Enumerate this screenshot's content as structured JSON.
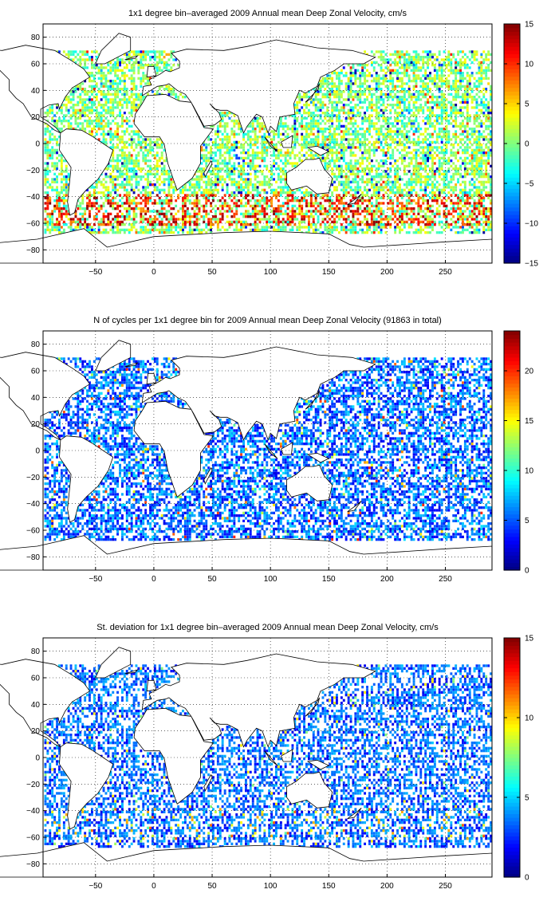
{
  "figure": {
    "panels": [
      {
        "title": "1x1 degree bin–averaged 2009 Annual mean Deep Zonal Velocity, cm/s",
        "colorbar": {
          "min": -15,
          "max": 15,
          "ticks": [
            "15",
            "10",
            "5",
            "0",
            "−5",
            "−10",
            "−15"
          ]
        }
      },
      {
        "title": "N of cycles per 1x1 degree bin for 2009 Annual mean Deep Zonal Velocity (91863 in total)",
        "colorbar": {
          "min": 0,
          "max": 24,
          "ticks": [
            "20",
            "15",
            "10",
            "5",
            "0"
          ]
        }
      },
      {
        "title": "St. deviation for 1x1 degree bin–averaged 2009 Annual mean Deep Zonal Velocity, cm/s",
        "colorbar": {
          "min": 0,
          "max": 15,
          "ticks": [
            "15",
            "10",
            "5",
            "0"
          ]
        }
      }
    ],
    "x_ticks": [
      "−50",
      "0",
      "50",
      "100",
      "150",
      "200",
      "250"
    ],
    "y_ticks": [
      "80",
      "60",
      "40",
      "20",
      "0",
      "−20",
      "−40",
      "−60",
      "−80"
    ],
    "colormap": "jet",
    "grid": "dotted"
  },
  "chart_data": [
    {
      "type": "heatmap",
      "title": "1x1 degree bin–averaged 2009 Annual mean Deep Zonal Velocity, cm/s",
      "xlim": [
        -95,
        290
      ],
      "ylim": [
        -90,
        90
      ],
      "colorbar_range": [
        -15,
        15
      ],
      "x_ticks": [
        -50,
        0,
        50,
        100,
        150,
        200,
        250
      ],
      "y_ticks": [
        80,
        60,
        40,
        20,
        0,
        -20,
        -40,
        -60,
        -80
      ],
      "grid": true
    },
    {
      "type": "heatmap",
      "title": "N of cycles per 1x1 degree bin for 2009 Annual mean Deep Zonal Velocity (91863 in total)",
      "xlim": [
        -95,
        290
      ],
      "ylim": [
        -90,
        90
      ],
      "colorbar_range": [
        0,
        24
      ],
      "total": 91863,
      "x_ticks": [
        -50,
        0,
        50,
        100,
        150,
        200,
        250
      ],
      "y_ticks": [
        80,
        60,
        40,
        20,
        0,
        -20,
        -40,
        -60,
        -80
      ],
      "grid": true
    },
    {
      "type": "heatmap",
      "title": "St. deviation for 1x1 degree bin–averaged 2009 Annual mean Deep Zonal Velocity, cm/s",
      "xlim": [
        -95,
        290
      ],
      "ylim": [
        -90,
        90
      ],
      "colorbar_range": [
        0,
        15
      ],
      "x_ticks": [
        -50,
        0,
        50,
        100,
        150,
        200,
        250
      ],
      "y_ticks": [
        80,
        60,
        40,
        20,
        0,
        -20,
        -40,
        -60,
        -80
      ],
      "grid": true
    }
  ]
}
